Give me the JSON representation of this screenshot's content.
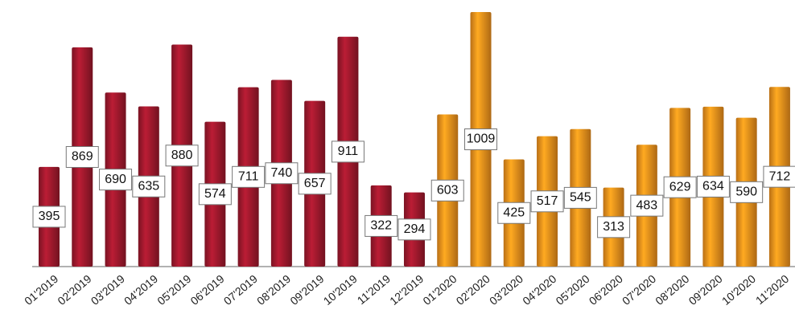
{
  "chart_data": {
    "type": "bar",
    "categories": [
      "01'2019",
      "02'2019",
      "03'2019",
      "04'2019",
      "05'2019",
      "06'2019",
      "07'2019",
      "08'2019",
      "09'2019",
      "10'2019",
      "11'2019",
      "12'2019",
      "01'2020",
      "02'2020",
      "03'2020",
      "04'2020",
      "05'2020",
      "06'2020",
      "07'2020",
      "08'2020",
      "09'2020",
      "10'2020",
      "11'2020"
    ],
    "values": [
      395,
      869,
      690,
      635,
      880,
      574,
      711,
      740,
      657,
      911,
      322,
      294,
      603,
      1009,
      425,
      517,
      545,
      313,
      483,
      629,
      634,
      590,
      712
    ],
    "colors": [
      "#a3192e",
      "#a3192e",
      "#a3192e",
      "#a3192e",
      "#a3192e",
      "#a3192e",
      "#a3192e",
      "#a3192e",
      "#a3192e",
      "#a3192e",
      "#a3192e",
      "#a3192e",
      "#f7941d",
      "#f7941d",
      "#f7941d",
      "#f7941d",
      "#f7941d",
      "#f7941d",
      "#f7941d",
      "#f7941d",
      "#f7941d",
      "#f7941d",
      "#f7941d"
    ]
  }
}
